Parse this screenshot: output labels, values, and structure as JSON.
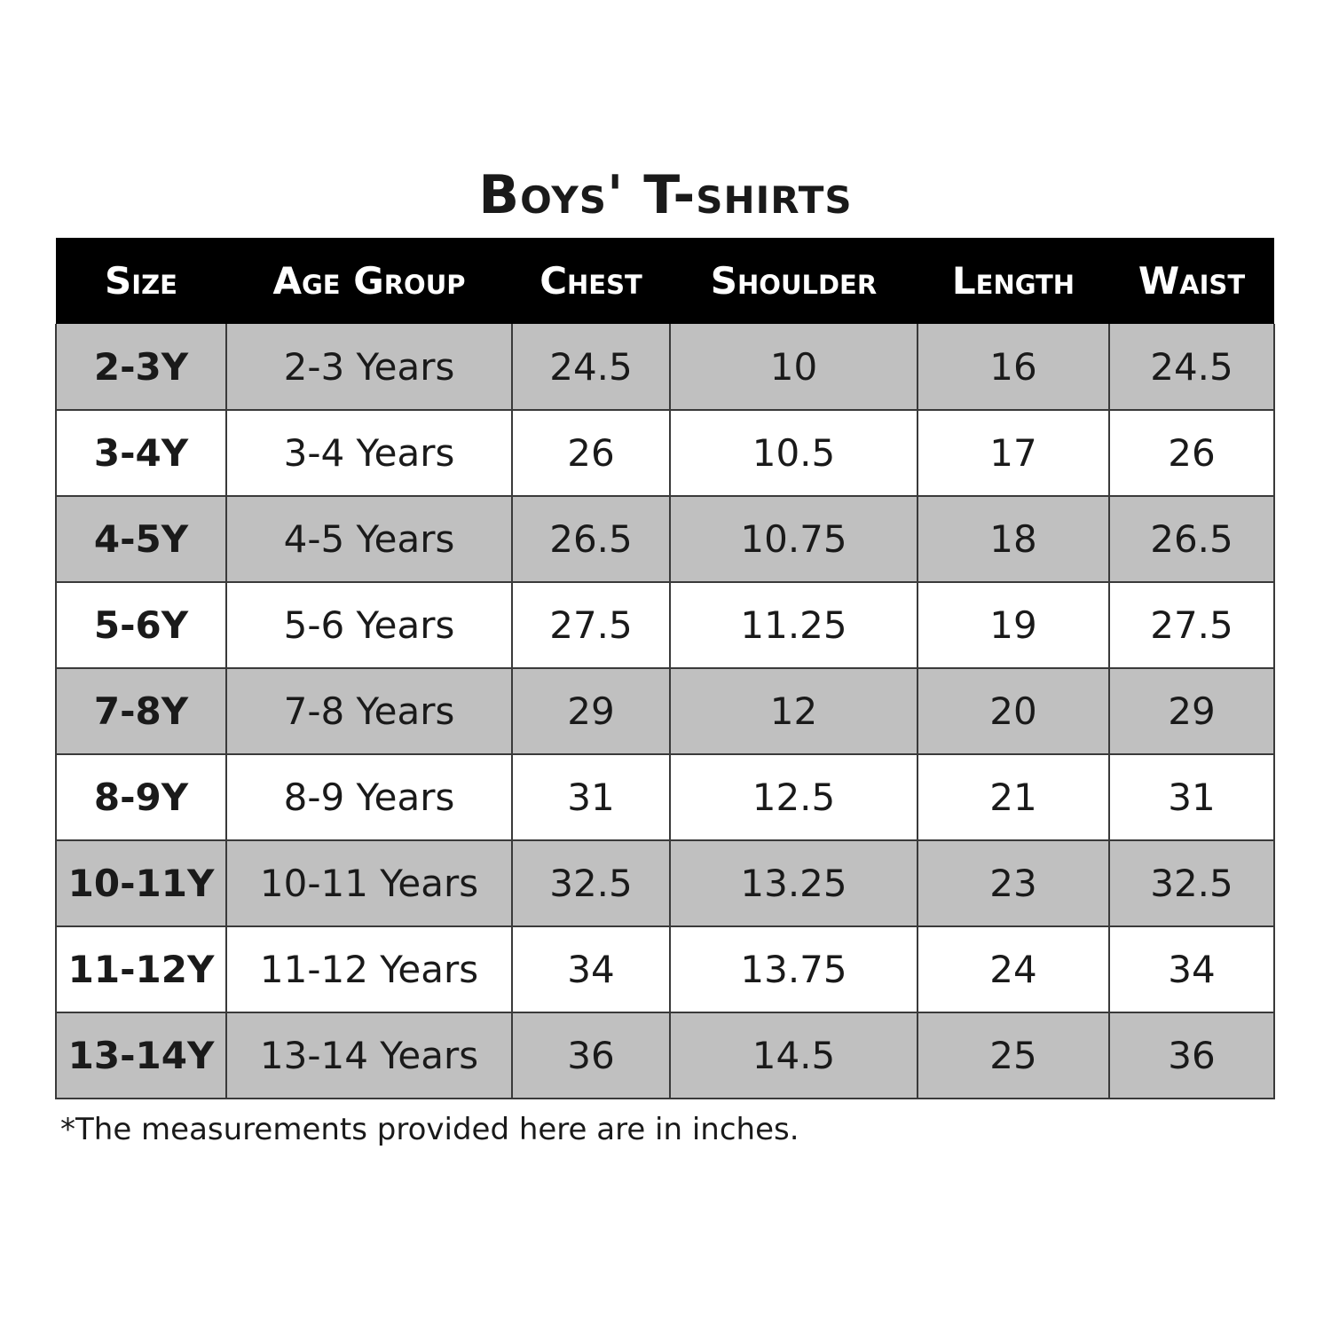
{
  "title": "Boys' T-shirts",
  "table": {
    "headers": [
      "Size",
      "Age Group",
      "Chest",
      "Shoulder",
      "Length",
      "Waist"
    ],
    "rows": [
      [
        "2-3Y",
        "2-3 Years",
        "24.5",
        "10",
        "16",
        "24.5"
      ],
      [
        "3-4Y",
        "3-4 Years",
        "26",
        "10.5",
        "17",
        "26"
      ],
      [
        "4-5Y",
        "4-5 Years",
        "26.5",
        "10.75",
        "18",
        "26.5"
      ],
      [
        "5-6Y",
        "5-6 Years",
        "27.5",
        "11.25",
        "19",
        "27.5"
      ],
      [
        "7-8Y",
        "7-8 Years",
        "29",
        "12",
        "20",
        "29"
      ],
      [
        "8-9Y",
        "8-9 Years",
        "31",
        "12.5",
        "21",
        "31"
      ],
      [
        "10-11Y",
        "10-11 Years",
        "32.5",
        "13.25",
        "23",
        "32.5"
      ],
      [
        "11-12Y",
        "11-12 Years",
        "34",
        "13.75",
        "24",
        "34"
      ],
      [
        "13-14Y",
        "13-14 Years",
        "36",
        "14.5",
        "25",
        "36"
      ]
    ]
  },
  "footnote": "*The measurements provided here are in inches.",
  "colors": {
    "header_background": "#000000",
    "header_text": "#ffffff",
    "row_shaded": "#c0c0c0",
    "row_plain": "#ffffff"
  }
}
